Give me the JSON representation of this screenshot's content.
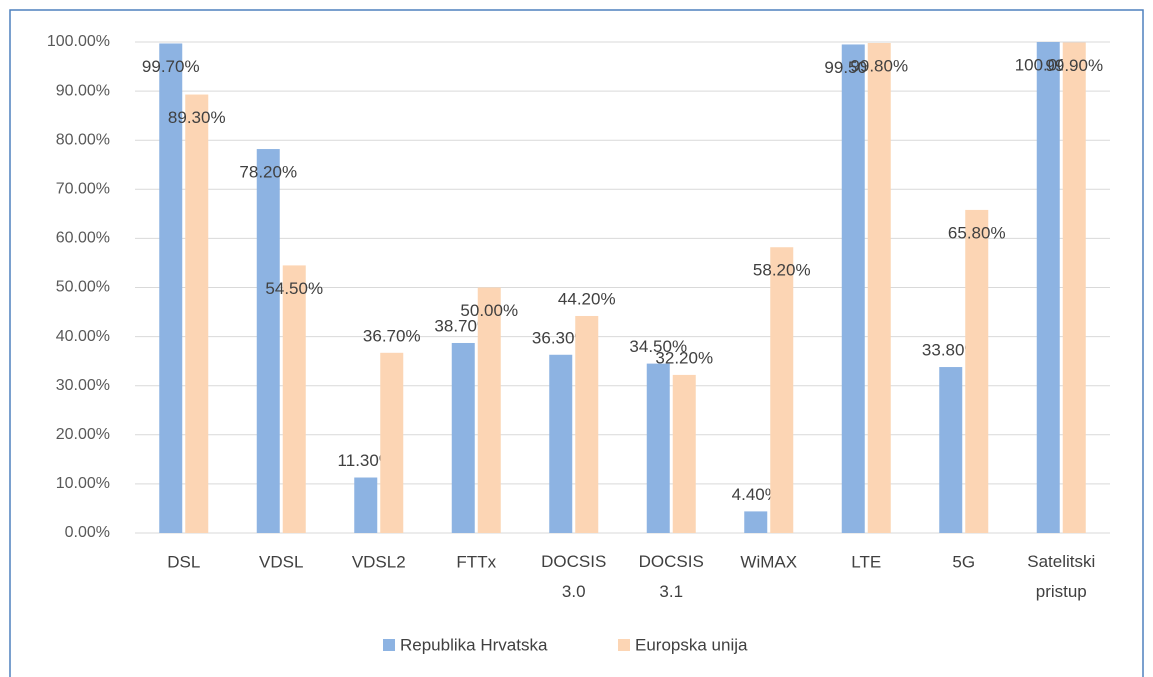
{
  "chart_data": {
    "type": "bar",
    "categories": [
      "DSL",
      "VDSL",
      "VDSL2",
      "FTTx",
      "DOCSIS 3.0",
      "DOCSIS 3.1",
      "WiMAX",
      "LTE",
      "5G",
      "Satelitski pristup"
    ],
    "series": [
      {
        "name": "Republika Hrvatska",
        "color": "#8db3e2",
        "values": [
          99.7,
          78.2,
          11.3,
          38.7,
          36.3,
          34.5,
          4.4,
          99.5,
          33.8,
          100.0
        ],
        "value_labels": [
          "99.70%",
          "78.20%",
          "11.30%",
          "38.70%",
          "36.30%",
          "34.50%",
          "4.40%",
          "99.50%",
          "33.80%",
          "100.00%"
        ]
      },
      {
        "name": "Europska unija",
        "color": "#fcd5b4",
        "values": [
          89.3,
          54.5,
          36.7,
          50.0,
          44.2,
          32.2,
          58.2,
          99.8,
          65.8,
          99.9
        ],
        "value_labels": [
          "89.30%",
          "54.50%",
          "36.70%",
          "50.00%",
          "44.20%",
          "32.20%",
          "58.20%",
          "99.80%",
          "65.80%",
          "99.90%"
        ]
      }
    ],
    "ylim": [
      0,
      100
    ],
    "yticks": [
      {
        "value": 0,
        "label": "0.00%"
      },
      {
        "value": 10,
        "label": "10.00%"
      },
      {
        "value": 20,
        "label": "20.00%"
      },
      {
        "value": 30,
        "label": "30.00%"
      },
      {
        "value": 40,
        "label": "40.00%"
      },
      {
        "value": 50,
        "label": "50.00%"
      },
      {
        "value": 60,
        "label": "60.00%"
      },
      {
        "value": 70,
        "label": "70.00%"
      },
      {
        "value": 80,
        "label": "80.00%"
      },
      {
        "value": 90,
        "label": "90.00%"
      },
      {
        "value": 100,
        "label": "100.00%"
      }
    ],
    "grid": true,
    "legend": "bottom"
  }
}
